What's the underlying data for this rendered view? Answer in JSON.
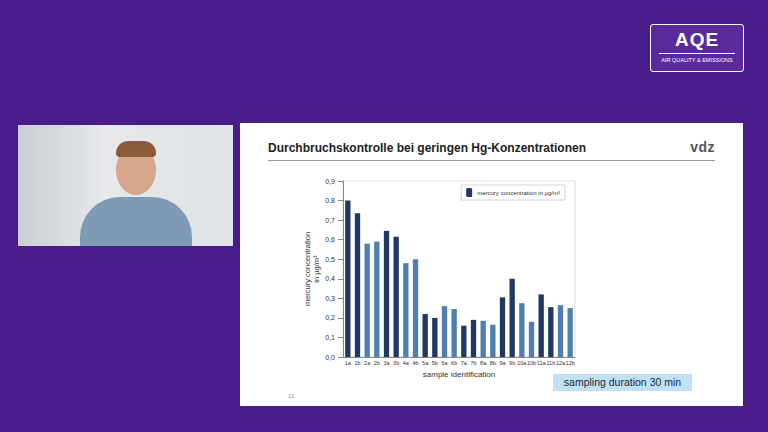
{
  "chart_data": {
    "type": "bar",
    "title": "Durchbruchskontrolle bei geringen Hg-Konzentrationen",
    "x_label": "sample identification",
    "y_label": "mercury concentration\nin µg/m³",
    "annotation": "sampling duration 30 min",
    "categories": [
      "1a",
      "1b",
      "2a",
      "2b",
      "3a",
      "3b",
      "4a",
      "4b",
      "5a",
      "5b",
      "6a",
      "6b",
      "7a",
      "7b",
      "8a",
      "8b",
      "9a",
      "9b",
      "10a",
      "10b",
      "11a",
      "11b",
      "12a",
      "12b"
    ],
    "series": [
      {
        "name": "mercury concentration in µg/m³",
        "values": [
          0.8,
          0.735,
          0.58,
          0.59,
          0.645,
          0.615,
          0.48,
          0.5,
          0.22,
          0.2,
          0.26,
          0.245,
          0.16,
          0.19,
          0.185,
          0.165,
          0.305,
          0.4,
          0.275,
          0.18,
          0.32,
          0.255,
          0.265,
          0.25
        ],
        "colors": [
          "#1f3864",
          "#1f3864",
          "#4f7fae",
          "#4f7fae",
          "#1f3864",
          "#1f3864",
          "#4f7fae",
          "#4f7fae",
          "#1f3864",
          "#1f3864",
          "#4f7fae",
          "#4f7fae",
          "#1f3864",
          "#1f3864",
          "#4f7fae",
          "#4f7fae",
          "#1f3864",
          "#1f3864",
          "#4f7fae",
          "#4f7fae",
          "#1f3864",
          "#1f3864",
          "#4f7fae",
          "#4f7fae"
        ]
      }
    ],
    "ylim": [
      0,
      0.9
    ],
    "yticks": [
      {
        "value": 0,
        "label": "0,0"
      },
      {
        "value": 0.1,
        "label": "0,1"
      },
      {
        "value": 0.2,
        "label": "0,2"
      },
      {
        "value": 0.3,
        "label": "0,3"
      },
      {
        "value": 0.4,
        "label": "0,4"
      },
      {
        "value": 0.5,
        "label": "0,5"
      },
      {
        "value": 0.6,
        "label": "0,6"
      },
      {
        "value": 0.7,
        "label": "0,7"
      },
      {
        "value": 0.8,
        "label": "0,8"
      },
      {
        "value": 0.9,
        "label": "0,9"
      }
    ],
    "grid": false,
    "legend": "top-right"
  },
  "page": {
    "badge": "AQE",
    "badge_subtitle": "AIR QUALITY & EMISSIONS",
    "logo": "vdz",
    "page_number": "11"
  }
}
